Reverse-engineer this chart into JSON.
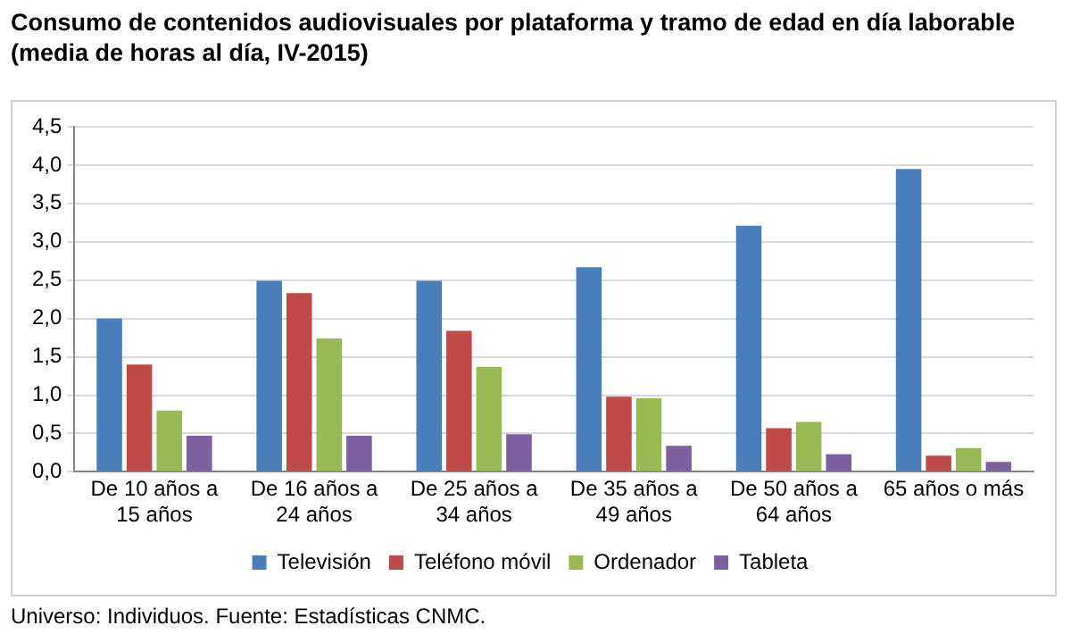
{
  "chart_data": {
    "type": "bar",
    "title": "Consumo de contenidos audiovisuales por plataforma y tramo de edad en día laborable (media de horas al día, IV-2015)",
    "categories": [
      "De 10 años a 15 años",
      "De 16 años a 24 años",
      "De 25 años a 34 años",
      "De 35 años a 49 años",
      "De 50 años a 64 años",
      "65 años o más"
    ],
    "series": [
      {
        "name": "Televisión",
        "color": "#4a7ebb",
        "values": [
          2.0,
          2.49,
          2.49,
          2.67,
          3.21,
          3.95
        ]
      },
      {
        "name": "Teléfono móvil",
        "color": "#be4b48",
        "values": [
          1.4,
          2.33,
          1.84,
          0.98,
          0.57,
          0.21
        ]
      },
      {
        "name": "Ordenador",
        "color": "#98b954",
        "values": [
          0.8,
          1.74,
          1.37,
          0.96,
          0.65,
          0.31
        ]
      },
      {
        "name": "Tableta",
        "color": "#7d60a0",
        "values": [
          0.47,
          0.47,
          0.49,
          0.34,
          0.23,
          0.13
        ]
      }
    ],
    "ylim": [
      0,
      4.5
    ],
    "yticks": [
      {
        "value": 0,
        "label": "0,0"
      },
      {
        "value": 0.5,
        "label": "0,5"
      },
      {
        "value": 1,
        "label": "1,0"
      },
      {
        "value": 1.5,
        "label": "1,5"
      },
      {
        "value": 2,
        "label": "2,0"
      },
      {
        "value": 2.5,
        "label": "2,5"
      },
      {
        "value": 3,
        "label": "3,0"
      },
      {
        "value": 3.5,
        "label": "3,5"
      },
      {
        "value": 4,
        "label": "4,0"
      },
      {
        "value": 4.5,
        "label": "4,5"
      }
    ],
    "grid": "y",
    "legend": "bottom",
    "annotations": [
      "Universo: Individuos. Fuente: Estadísticas CNMC."
    ]
  }
}
